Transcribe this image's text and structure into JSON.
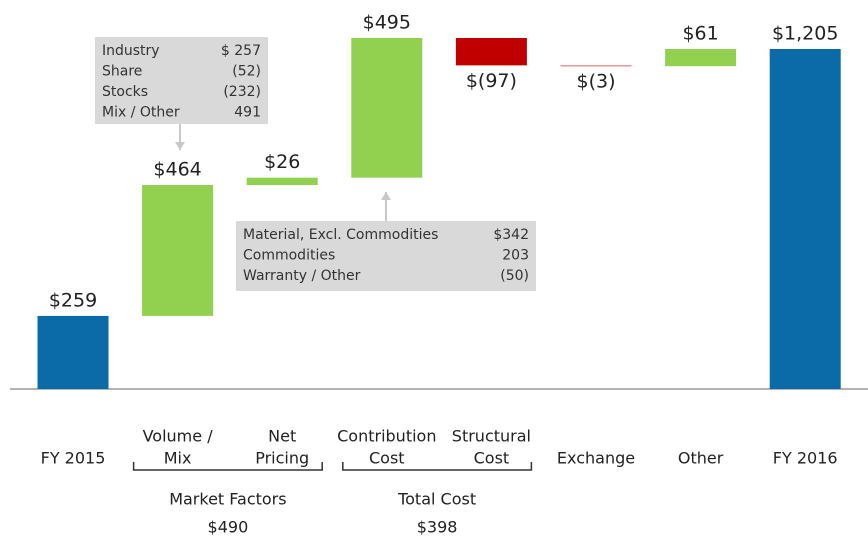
{
  "chart_data": {
    "type": "waterfall",
    "categories": [
      [
        "FY 2015"
      ],
      [
        "Volume /",
        "Mix"
      ],
      [
        "Net",
        "Pricing"
      ],
      [
        "Contribution",
        "Cost"
      ],
      [
        "Structural",
        "Cost"
      ],
      [
        "Exchange"
      ],
      [
        "Other"
      ],
      [
        "FY 2016"
      ]
    ],
    "values": [
      259,
      464,
      26,
      495,
      -97,
      -3,
      61,
      1205
    ],
    "value_labels": [
      "$259",
      "$464",
      "$26",
      "$495",
      "$(97)",
      "$(3)",
      "$61",
      "$1,205"
    ],
    "is_total": [
      true,
      false,
      false,
      false,
      false,
      false,
      false,
      true
    ],
    "colors": [
      "#0b6aa8",
      "#92d050",
      "#92d050",
      "#92d050",
      "#c00000",
      "#e06060",
      "#92d050",
      "#0b6aa8"
    ],
    "groups": [
      {
        "label": "Market Factors",
        "value": 490,
        "value_label": "$490"
      },
      {
        "label": "Total Cost",
        "value": 398,
        "value_label": "$398"
      }
    ],
    "annotations": [
      {
        "rows": [
          [
            "Industry",
            "$ 257"
          ],
          [
            "Share",
            "(52)"
          ],
          [
            "Stocks",
            "(232)"
          ],
          [
            "Mix / Other",
            "491"
          ]
        ]
      },
      {
        "rows": [
          [
            "Material, Excl. Commodities",
            "$342"
          ],
          [
            "Commodities",
            "203"
          ],
          [
            "Warranty / Other",
            "(50)"
          ]
        ]
      }
    ]
  }
}
